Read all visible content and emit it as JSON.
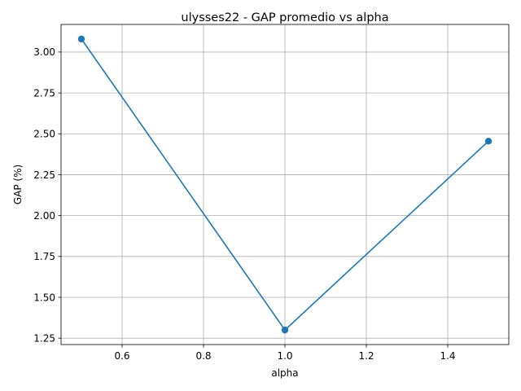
{
  "chart_data": {
    "type": "line",
    "title": "ulysses22 - GAP promedio vs alpha",
    "xlabel": "alpha",
    "ylabel": "GAP (%)",
    "x": [
      0.5,
      1.0,
      1.5
    ],
    "series": [
      {
        "values": [
          3.08,
          1.3,
          2.455
        ],
        "color": "#1f77b4",
        "marker": "circle"
      }
    ],
    "xlim": [
      0.45,
      1.55
    ],
    "ylim": [
      1.211,
      3.169
    ],
    "xticks": [
      0.6,
      0.8,
      1.0,
      1.2,
      1.4
    ],
    "xtick_labels": [
      "0.6",
      "0.8",
      "1.0",
      "1.2",
      "1.4"
    ],
    "yticks": [
      1.25,
      1.5,
      1.75,
      2.0,
      2.25,
      2.5,
      2.75,
      3.0
    ],
    "ytick_labels": [
      "1.25",
      "1.50",
      "1.75",
      "2.00",
      "2.25",
      "2.50",
      "2.75",
      "3.00"
    ],
    "grid": true,
    "legend": "none"
  }
}
